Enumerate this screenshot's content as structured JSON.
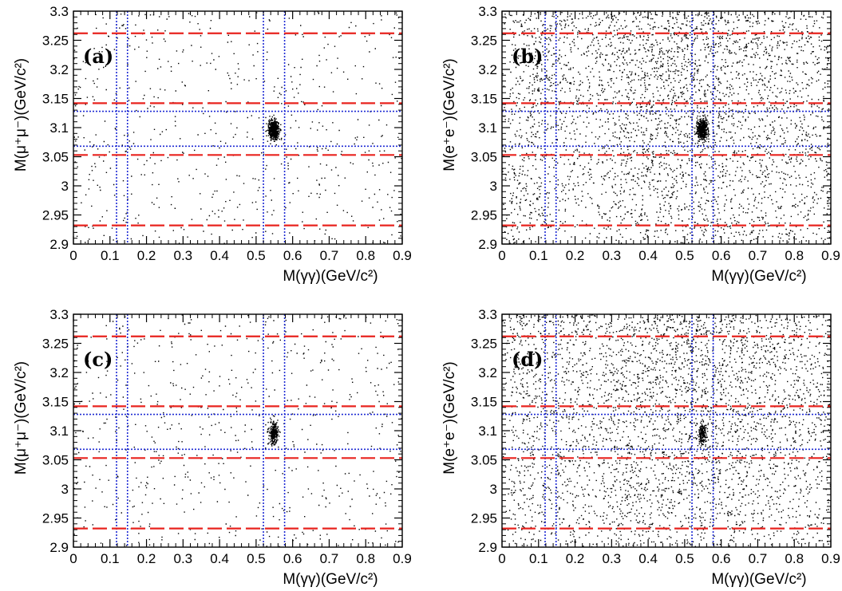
{
  "chart_data": [
    {
      "type": "scatter",
      "panel_label": "(a)",
      "xlabel": "M(γγ)(GeV/c²)",
      "ylabel": "M(μ⁺μ⁻)(GeV/c²)",
      "xlim": [
        0,
        0.9
      ],
      "ylim": [
        2.9,
        3.3
      ],
      "x_ticks": [
        "0",
        "0.1",
        "0.2",
        "0.3",
        "0.4",
        "0.5",
        "0.6",
        "0.7",
        "0.8",
        "0.9"
      ],
      "y_ticks": [
        "2.9",
        "2.95",
        "3",
        "3.05",
        "3.1",
        "3.15",
        "3.2",
        "3.25",
        "3.3"
      ],
      "cut_lines_red_dashed_y": [
        2.932,
        3.053,
        3.142,
        3.262
      ],
      "cut_lines_blue_dotted_y": [
        3.068,
        3.128
      ],
      "cut_lines_blue_dotted_x": [
        0.118,
        0.148,
        0.52,
        0.578
      ],
      "cluster": {
        "x": 0.547,
        "y": 3.097
      },
      "density": "low"
    },
    {
      "type": "scatter",
      "panel_label": "(b)",
      "xlabel": "M(γγ)(GeV/c²)",
      "ylabel": "M(e⁺e⁻)(GeV/c²)",
      "xlim": [
        0,
        0.9
      ],
      "ylim": [
        2.9,
        3.3
      ],
      "x_ticks": [
        "0",
        "0.1",
        "0.2",
        "0.3",
        "0.4",
        "0.5",
        "0.6",
        "0.7",
        "0.8",
        "0.9"
      ],
      "y_ticks": [
        "2.9",
        "2.95",
        "3",
        "3.05",
        "3.1",
        "3.15",
        "3.2",
        "3.25",
        "3.3"
      ],
      "cut_lines_red_dashed_y": [
        2.932,
        3.053,
        3.142,
        3.262
      ],
      "cut_lines_blue_dotted_y": [
        3.068,
        3.128
      ],
      "cut_lines_blue_dotted_x": [
        0.118,
        0.148,
        0.52,
        0.578
      ],
      "cluster": {
        "x": 0.547,
        "y": 3.097
      },
      "density": "high"
    },
    {
      "type": "scatter",
      "panel_label": "(c)",
      "xlabel": "M(γγ)(GeV/c²)",
      "ylabel": "M(μ⁺μ⁻)(GeV/c²)",
      "xlim": [
        0,
        0.9
      ],
      "ylim": [
        2.9,
        3.3
      ],
      "x_ticks": [
        "0",
        "0.1",
        "0.2",
        "0.3",
        "0.4",
        "0.5",
        "0.6",
        "0.7",
        "0.8",
        "0.9"
      ],
      "y_ticks": [
        "2.9",
        "2.95",
        "3",
        "3.05",
        "3.1",
        "3.15",
        "3.2",
        "3.25",
        "3.3"
      ],
      "cut_lines_red_dashed_y": [
        2.932,
        3.053,
        3.142,
        3.262
      ],
      "cut_lines_blue_dotted_y": [
        3.068,
        3.128
      ],
      "cut_lines_blue_dotted_x": [
        0.118,
        0.148,
        0.52,
        0.578
      ],
      "cluster": {
        "x": 0.547,
        "y": 3.097
      },
      "density": "low"
    },
    {
      "type": "scatter",
      "panel_label": "(d)",
      "xlabel": "M(γγ)(GeV/c²)",
      "ylabel": "M(e⁺e⁻)(GeV/c²)",
      "xlim": [
        0,
        0.9
      ],
      "ylim": [
        2.9,
        3.3
      ],
      "x_ticks": [
        "0",
        "0.1",
        "0.2",
        "0.3",
        "0.4",
        "0.5",
        "0.6",
        "0.7",
        "0.8",
        "0.9"
      ],
      "y_ticks": [
        "2.9",
        "2.95",
        "3",
        "3.05",
        "3.1",
        "3.15",
        "3.2",
        "3.25",
        "3.3"
      ],
      "cut_lines_red_dashed_y": [
        2.932,
        3.053,
        3.142,
        3.262
      ],
      "cut_lines_blue_dotted_y": [
        3.068,
        3.128
      ],
      "cut_lines_blue_dotted_x": [
        0.118,
        0.148,
        0.52,
        0.578
      ],
      "cluster": {
        "x": 0.547,
        "y": 3.097
      },
      "density": "high"
    }
  ],
  "colors": {
    "signal_window": "#e8231e",
    "sideband": "#1f2bd4",
    "points": "#000000"
  }
}
